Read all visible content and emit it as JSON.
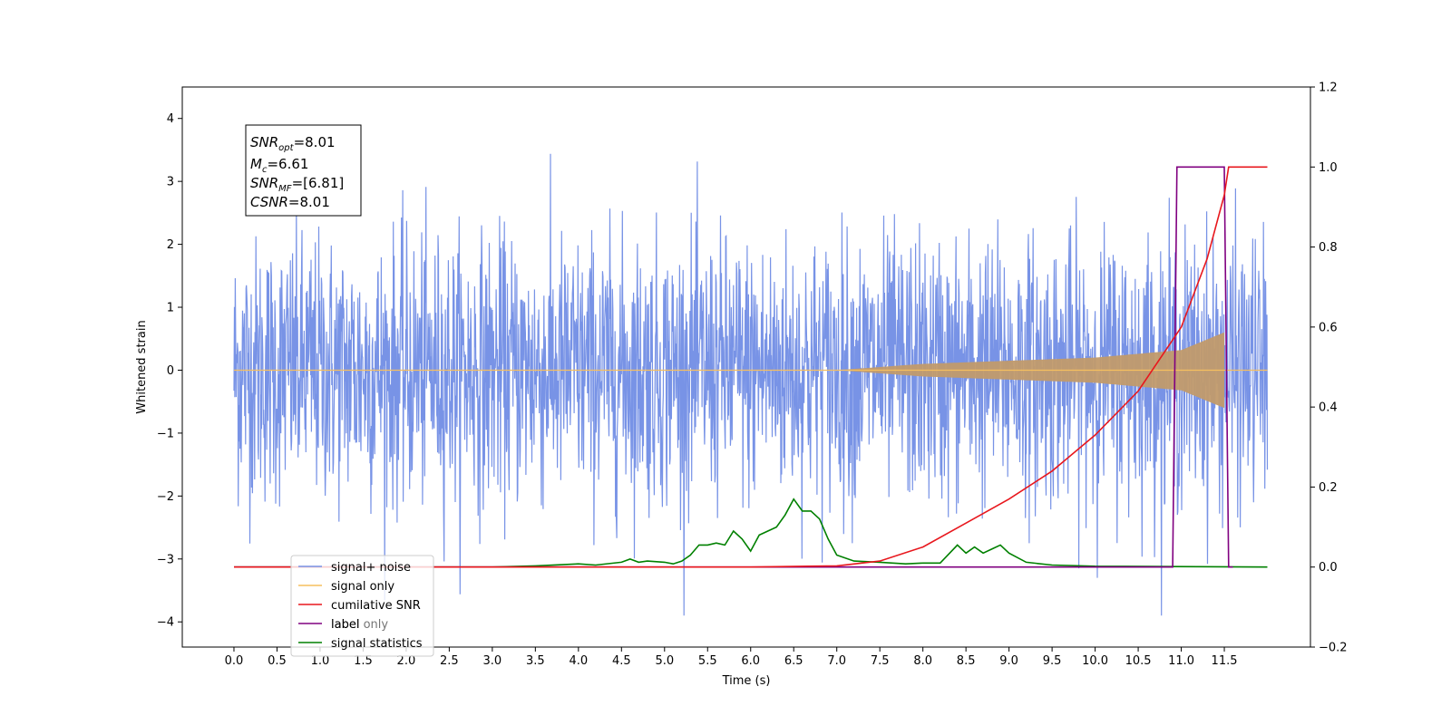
{
  "chart_data": {
    "type": "line",
    "title": "",
    "xlabel": "Time (s)",
    "ylabel": "Whitened strain",
    "xlim": [
      -0.6,
      12.5
    ],
    "ylim": [
      -4.4,
      4.5
    ],
    "y2lim": [
      -0.2,
      1.2
    ],
    "x_ticks": [
      "0.0",
      "0.5",
      "1.0",
      "1.5",
      "2.0",
      "2.5",
      "3.0",
      "3.5",
      "4.0",
      "4.5",
      "5.0",
      "5.5",
      "6.0",
      "6.5",
      "7.0",
      "7.5",
      "8.0",
      "8.5",
      "9.0",
      "9.5",
      "10.0",
      "10.5",
      "11.0",
      "11.5"
    ],
    "y_ticks": [
      "4",
      "3",
      "2",
      "1",
      "0",
      "−1",
      "−2",
      "−3",
      "−4"
    ],
    "y2_ticks": [
      "1.2",
      "1.0",
      "0.8",
      "0.6",
      "0.4",
      "0.2",
      "0.0",
      "−0.2"
    ],
    "grid": false,
    "legend_position": "bottom-left",
    "annotation": {
      "snr_opt": {
        "sym": "SNR",
        "sub": "opt",
        "val": "=8.01"
      },
      "mc": {
        "sym": "M",
        "sub": "c",
        "val": "=6.61"
      },
      "snr_mf": {
        "sym": "SNR",
        "sub": "MF",
        "val": "=[6.81]"
      },
      "csnr": {
        "sym": "CSNR",
        "val": "=8.01"
      }
    },
    "series": [
      {
        "name": "signal+ noise",
        "color": "#7893e6",
        "axis": "left",
        "kind": "noise",
        "x_range": [
          0.0,
          12.0
        ],
        "std": 1.0
      },
      {
        "name": "signal only",
        "color": "#f5bf5f",
        "axis": "left",
        "kind": "chirp",
        "x_range": [
          0.0,
          11.5
        ],
        "amplitude_envelope": [
          [
            7.0,
            0.0
          ],
          [
            8.0,
            0.1
          ],
          [
            9.0,
            0.15
          ],
          [
            10.0,
            0.2
          ],
          [
            11.0,
            0.32
          ],
          [
            11.5,
            0.6
          ]
        ]
      },
      {
        "name": "cumilative SNR",
        "color": "#e8171d",
        "axis": "right",
        "x": [
          0.0,
          6.0,
          7.0,
          7.5,
          8.0,
          8.5,
          9.0,
          9.5,
          10.0,
          10.5,
          11.0,
          11.3,
          11.5,
          11.55,
          12.0
        ],
        "y": [
          0.0,
          0.0,
          0.003,
          0.015,
          0.05,
          0.11,
          0.17,
          0.24,
          0.33,
          0.44,
          0.6,
          0.77,
          0.93,
          1.0,
          1.0
        ]
      },
      {
        "name": "label",
        "color": "#800080",
        "axis": "right",
        "x": [
          0.0,
          10.9,
          10.95,
          11.5,
          11.55,
          11.6
        ],
        "y": [
          0.0,
          0.0,
          1.0,
          1.0,
          0.0,
          0.0
        ]
      },
      {
        "name": "label only",
        "color": "#ffffff",
        "axis": "right",
        "x": [],
        "y": []
      },
      {
        "name": "signal statistics",
        "color": "#008000",
        "axis": "right",
        "x": [
          0.0,
          3.0,
          3.5,
          4.0,
          4.2,
          4.5,
          4.6,
          4.7,
          4.8,
          5.0,
          5.1,
          5.2,
          5.3,
          5.4,
          5.5,
          5.6,
          5.7,
          5.8,
          5.9,
          6.0,
          6.1,
          6.2,
          6.3,
          6.4,
          6.5,
          6.6,
          6.7,
          6.8,
          6.9,
          7.0,
          7.2,
          7.5,
          7.8,
          8.0,
          8.2,
          8.4,
          8.5,
          8.6,
          8.7,
          8.8,
          8.9,
          9.0,
          9.2,
          9.5,
          10.0,
          12.0
        ],
        "y": [
          0.0,
          0.0,
          0.003,
          0.008,
          0.005,
          0.012,
          0.02,
          0.012,
          0.015,
          0.012,
          0.008,
          0.015,
          0.03,
          0.055,
          0.055,
          0.06,
          0.055,
          0.09,
          0.07,
          0.04,
          0.08,
          0.09,
          0.1,
          0.13,
          0.17,
          0.14,
          0.14,
          0.12,
          0.07,
          0.03,
          0.015,
          0.012,
          0.008,
          0.01,
          0.01,
          0.055,
          0.035,
          0.05,
          0.035,
          0.045,
          0.055,
          0.035,
          0.012,
          0.005,
          0.002,
          0.0
        ]
      }
    ]
  }
}
